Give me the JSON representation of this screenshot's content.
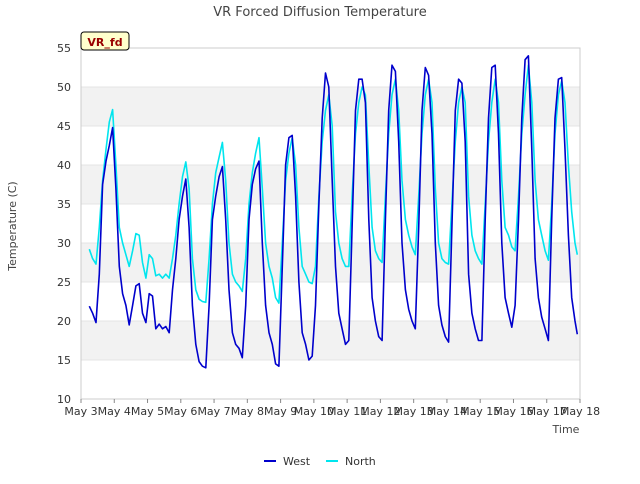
{
  "chart_data": {
    "type": "line",
    "title": "VR Forced Diffusion Temperature",
    "xlabel": "Time",
    "ylabel": "Temperature (C)",
    "ylim": [
      10,
      55
    ],
    "xlim": [
      0,
      15
    ],
    "y_ticks": [
      10,
      15,
      20,
      25,
      30,
      35,
      40,
      45,
      50,
      55
    ],
    "x_ticks": [
      {
        "x": 0,
        "label": "May 3"
      },
      {
        "x": 1,
        "label": "May 4"
      },
      {
        "x": 2,
        "label": "May 5"
      },
      {
        "x": 3,
        "label": "May 6"
      },
      {
        "x": 4,
        "label": "May 7"
      },
      {
        "x": 5,
        "label": "May 8"
      },
      {
        "x": 6,
        "label": "May 9"
      },
      {
        "x": 7,
        "label": "May 10"
      },
      {
        "x": 8,
        "label": "May 11"
      },
      {
        "x": 9,
        "label": "May 12"
      },
      {
        "x": 10,
        "label": "May 13"
      },
      {
        "x": 11,
        "label": "May 14"
      },
      {
        "x": 12,
        "label": "May 15"
      },
      {
        "x": 13,
        "label": "May 16"
      },
      {
        "x": 14,
        "label": "May 17"
      },
      {
        "x": 15,
        "label": "May 18"
      }
    ],
    "grid": "horizontal bands",
    "legend": "bottom-center",
    "badge": "VR_fd",
    "series": [
      {
        "name": "West",
        "color": "#0000cc",
        "points": [
          [
            0.25,
            21.9
          ],
          [
            0.35,
            21.0
          ],
          [
            0.45,
            19.8
          ],
          [
            0.55,
            26.0
          ],
          [
            0.65,
            37.5
          ],
          [
            0.75,
            40.5
          ],
          [
            0.85,
            42.5
          ],
          [
            0.95,
            44.8
          ],
          [
            1.05,
            37.0
          ],
          [
            1.15,
            27.0
          ],
          [
            1.25,
            23.5
          ],
          [
            1.35,
            22.0
          ],
          [
            1.45,
            19.5
          ],
          [
            1.55,
            22.0
          ],
          [
            1.65,
            24.5
          ],
          [
            1.75,
            24.8
          ],
          [
            1.85,
            21.0
          ],
          [
            1.95,
            19.8
          ],
          [
            2.05,
            23.5
          ],
          [
            2.15,
            23.2
          ],
          [
            2.25,
            19.0
          ],
          [
            2.35,
            19.6
          ],
          [
            2.45,
            19.0
          ],
          [
            2.55,
            19.3
          ],
          [
            2.65,
            18.5
          ],
          [
            2.75,
            24.0
          ],
          [
            2.85,
            28.0
          ],
          [
            2.95,
            33.0
          ],
          [
            3.05,
            36.0
          ],
          [
            3.15,
            38.2
          ],
          [
            3.25,
            32.0
          ],
          [
            3.35,
            22.0
          ],
          [
            3.45,
            17.0
          ],
          [
            3.55,
            14.8
          ],
          [
            3.65,
            14.2
          ],
          [
            3.75,
            14.0
          ],
          [
            3.85,
            22.0
          ],
          [
            3.95,
            33.0
          ],
          [
            4.05,
            36.0
          ],
          [
            4.15,
            38.5
          ],
          [
            4.25,
            39.8
          ],
          [
            4.35,
            33.0
          ],
          [
            4.45,
            24.0
          ],
          [
            4.55,
            18.5
          ],
          [
            4.65,
            17.0
          ],
          [
            4.75,
            16.5
          ],
          [
            4.85,
            15.3
          ],
          [
            4.95,
            22.0
          ],
          [
            5.05,
            33.0
          ],
          [
            5.15,
            37.5
          ],
          [
            5.25,
            39.5
          ],
          [
            5.35,
            40.5
          ],
          [
            5.45,
            30.0
          ],
          [
            5.55,
            22.0
          ],
          [
            5.65,
            18.5
          ],
          [
            5.75,
            17.0
          ],
          [
            5.85,
            14.5
          ],
          [
            5.95,
            14.2
          ],
          [
            6.05,
            27.0
          ],
          [
            6.15,
            40.0
          ],
          [
            6.25,
            43.5
          ],
          [
            6.35,
            43.8
          ],
          [
            6.45,
            36.0
          ],
          [
            6.55,
            25.0
          ],
          [
            6.65,
            18.5
          ],
          [
            6.75,
            17.0
          ],
          [
            6.85,
            15.0
          ],
          [
            6.95,
            15.5
          ],
          [
            7.05,
            22.0
          ],
          [
            7.15,
            35.0
          ],
          [
            7.25,
            46.0
          ],
          [
            7.35,
            51.8
          ],
          [
            7.45,
            50.0
          ],
          [
            7.55,
            38.0
          ],
          [
            7.65,
            27.0
          ],
          [
            7.75,
            21.0
          ],
          [
            7.85,
            19.0
          ],
          [
            7.95,
            17.0
          ],
          [
            8.05,
            17.5
          ],
          [
            8.15,
            32.0
          ],
          [
            8.25,
            47.0
          ],
          [
            8.35,
            51.0
          ],
          [
            8.45,
            51.0
          ],
          [
            8.55,
            48.0
          ],
          [
            8.65,
            33.0
          ],
          [
            8.75,
            23.0
          ],
          [
            8.85,
            20.0
          ],
          [
            8.95,
            18.0
          ],
          [
            9.05,
            17.5
          ],
          [
            9.15,
            33.0
          ],
          [
            9.25,
            47.0
          ],
          [
            9.35,
            52.8
          ],
          [
            9.45,
            52.0
          ],
          [
            9.55,
            43.0
          ],
          [
            9.65,
            30.0
          ],
          [
            9.75,
            24.0
          ],
          [
            9.85,
            21.5
          ],
          [
            9.95,
            20.0
          ],
          [
            10.05,
            19.0
          ],
          [
            10.15,
            32.0
          ],
          [
            10.25,
            47.0
          ],
          [
            10.35,
            52.5
          ],
          [
            10.45,
            51.5
          ],
          [
            10.55,
            44.0
          ],
          [
            10.65,
            30.0
          ],
          [
            10.75,
            22.0
          ],
          [
            10.85,
            19.5
          ],
          [
            10.95,
            18.0
          ],
          [
            11.05,
            17.3
          ],
          [
            11.15,
            32.0
          ],
          [
            11.25,
            47.0
          ],
          [
            11.35,
            51.0
          ],
          [
            11.45,
            50.5
          ],
          [
            11.55,
            43.0
          ],
          [
            11.65,
            26.0
          ],
          [
            11.75,
            21.0
          ],
          [
            11.85,
            19.0
          ],
          [
            11.95,
            17.5
          ],
          [
            12.05,
            17.5
          ],
          [
            12.15,
            33.0
          ],
          [
            12.25,
            46.0
          ],
          [
            12.35,
            52.5
          ],
          [
            12.45,
            52.8
          ],
          [
            12.55,
            44.0
          ],
          [
            12.65,
            30.0
          ],
          [
            12.75,
            23.0
          ],
          [
            12.85,
            21.0
          ],
          [
            12.95,
            19.2
          ],
          [
            13.05,
            22.0
          ],
          [
            13.15,
            33.0
          ],
          [
            13.25,
            46.0
          ],
          [
            13.35,
            53.5
          ],
          [
            13.45,
            54.0
          ],
          [
            13.55,
            42.0
          ],
          [
            13.65,
            28.0
          ],
          [
            13.75,
            23.0
          ],
          [
            13.85,
            20.5
          ],
          [
            13.95,
            19.0
          ],
          [
            14.05,
            17.5
          ],
          [
            14.15,
            33.0
          ],
          [
            14.25,
            46.0
          ],
          [
            14.35,
            51.0
          ],
          [
            14.45,
            51.2
          ],
          [
            14.55,
            42.0
          ],
          [
            14.65,
            31.0
          ],
          [
            14.75,
            23.0
          ],
          [
            14.85,
            20.0
          ],
          [
            14.92,
            18.3
          ]
        ]
      },
      {
        "name": "North",
        "color": "#00e5ee",
        "points": [
          [
            0.25,
            29.2
          ],
          [
            0.35,
            28.0
          ],
          [
            0.45,
            27.3
          ],
          [
            0.55,
            32.0
          ],
          [
            0.65,
            38.0
          ],
          [
            0.75,
            42.0
          ],
          [
            0.85,
            45.5
          ],
          [
            0.95,
            47.1
          ],
          [
            1.05,
            40.0
          ],
          [
            1.15,
            32.0
          ],
          [
            1.25,
            30.0
          ],
          [
            1.35,
            28.5
          ],
          [
            1.45,
            27.0
          ],
          [
            1.55,
            29.0
          ],
          [
            1.65,
            31.2
          ],
          [
            1.75,
            31.0
          ],
          [
            1.85,
            27.5
          ],
          [
            1.95,
            25.5
          ],
          [
            2.05,
            28.5
          ],
          [
            2.15,
            28.0
          ],
          [
            2.25,
            25.8
          ],
          [
            2.35,
            26.0
          ],
          [
            2.45,
            25.5
          ],
          [
            2.55,
            26.0
          ],
          [
            2.65,
            25.5
          ],
          [
            2.75,
            28.0
          ],
          [
            2.85,
            31.0
          ],
          [
            2.95,
            35.0
          ],
          [
            3.05,
            38.5
          ],
          [
            3.15,
            40.4
          ],
          [
            3.25,
            37.0
          ],
          [
            3.35,
            28.0
          ],
          [
            3.45,
            24.0
          ],
          [
            3.55,
            22.8
          ],
          [
            3.65,
            22.5
          ],
          [
            3.75,
            22.4
          ],
          [
            3.85,
            28.0
          ],
          [
            3.95,
            35.0
          ],
          [
            4.05,
            39.0
          ],
          [
            4.15,
            41.0
          ],
          [
            4.25,
            42.9
          ],
          [
            4.35,
            38.0
          ],
          [
            4.45,
            30.0
          ],
          [
            4.55,
            26.0
          ],
          [
            4.65,
            25.0
          ],
          [
            4.75,
            24.5
          ],
          [
            4.85,
            23.8
          ],
          [
            4.95,
            28.0
          ],
          [
            5.05,
            35.0
          ],
          [
            5.15,
            39.0
          ],
          [
            5.25,
            41.5
          ],
          [
            5.35,
            43.5
          ],
          [
            5.45,
            37.0
          ],
          [
            5.55,
            30.0
          ],
          [
            5.65,
            27.0
          ],
          [
            5.75,
            25.5
          ],
          [
            5.85,
            23.0
          ],
          [
            5.95,
            22.3
          ],
          [
            6.05,
            30.0
          ],
          [
            6.15,
            38.0
          ],
          [
            6.25,
            41.5
          ],
          [
            6.35,
            43.5
          ],
          [
            6.45,
            40.0
          ],
          [
            6.55,
            32.0
          ],
          [
            6.65,
            27.0
          ],
          [
            6.75,
            26.0
          ],
          [
            6.85,
            25.0
          ],
          [
            6.95,
            24.8
          ],
          [
            7.05,
            27.0
          ],
          [
            7.15,
            36.0
          ],
          [
            7.25,
            43.0
          ],
          [
            7.35,
            47.0
          ],
          [
            7.45,
            49.0
          ],
          [
            7.55,
            45.0
          ],
          [
            7.65,
            34.0
          ],
          [
            7.75,
            30.0
          ],
          [
            7.85,
            28.0
          ],
          [
            7.95,
            27.0
          ],
          [
            8.05,
            27.0
          ],
          [
            8.15,
            36.0
          ],
          [
            8.25,
            44.0
          ],
          [
            8.35,
            48.0
          ],
          [
            8.45,
            50.0
          ],
          [
            8.55,
            49.0
          ],
          [
            8.65,
            40.0
          ],
          [
            8.75,
            32.0
          ],
          [
            8.85,
            29.0
          ],
          [
            8.95,
            28.0
          ],
          [
            9.05,
            27.5
          ],
          [
            9.15,
            36.0
          ],
          [
            9.25,
            44.0
          ],
          [
            9.35,
            49.0
          ],
          [
            9.45,
            51.0
          ],
          [
            9.55,
            47.0
          ],
          [
            9.65,
            38.0
          ],
          [
            9.75,
            33.0
          ],
          [
            9.85,
            31.0
          ],
          [
            9.95,
            29.5
          ],
          [
            10.05,
            28.5
          ],
          [
            10.15,
            36.0
          ],
          [
            10.25,
            44.0
          ],
          [
            10.35,
            49.0
          ],
          [
            10.45,
            51.0
          ],
          [
            10.55,
            48.0
          ],
          [
            10.65,
            37.0
          ],
          [
            10.75,
            30.0
          ],
          [
            10.85,
            28.0
          ],
          [
            10.95,
            27.5
          ],
          [
            11.05,
            27.3
          ],
          [
            11.15,
            35.0
          ],
          [
            11.25,
            43.0
          ],
          [
            11.35,
            48.0
          ],
          [
            11.45,
            50.0
          ],
          [
            11.55,
            48.0
          ],
          [
            11.65,
            36.0
          ],
          [
            11.75,
            31.0
          ],
          [
            11.85,
            29.0
          ],
          [
            11.95,
            28.0
          ],
          [
            12.05,
            27.3
          ],
          [
            12.15,
            35.0
          ],
          [
            12.25,
            43.0
          ],
          [
            12.35,
            48.0
          ],
          [
            12.45,
            51.0
          ],
          [
            12.55,
            48.0
          ],
          [
            12.65,
            38.0
          ],
          [
            12.75,
            32.0
          ],
          [
            12.85,
            31.0
          ],
          [
            12.95,
            29.5
          ],
          [
            13.05,
            29.0
          ],
          [
            13.15,
            36.0
          ],
          [
            13.25,
            44.0
          ],
          [
            13.35,
            49.0
          ],
          [
            13.45,
            52.8
          ],
          [
            13.55,
            48.0
          ],
          [
            13.65,
            38.0
          ],
          [
            13.75,
            33.0
          ],
          [
            13.85,
            31.0
          ],
          [
            13.95,
            29.0
          ],
          [
            14.05,
            27.8
          ],
          [
            14.15,
            35.0
          ],
          [
            14.25,
            44.0
          ],
          [
            14.35,
            49.0
          ],
          [
            14.45,
            50.8
          ],
          [
            14.55,
            48.0
          ],
          [
            14.65,
            40.0
          ],
          [
            14.75,
            34.0
          ],
          [
            14.85,
            30.0
          ],
          [
            14.92,
            28.5
          ]
        ]
      }
    ]
  }
}
